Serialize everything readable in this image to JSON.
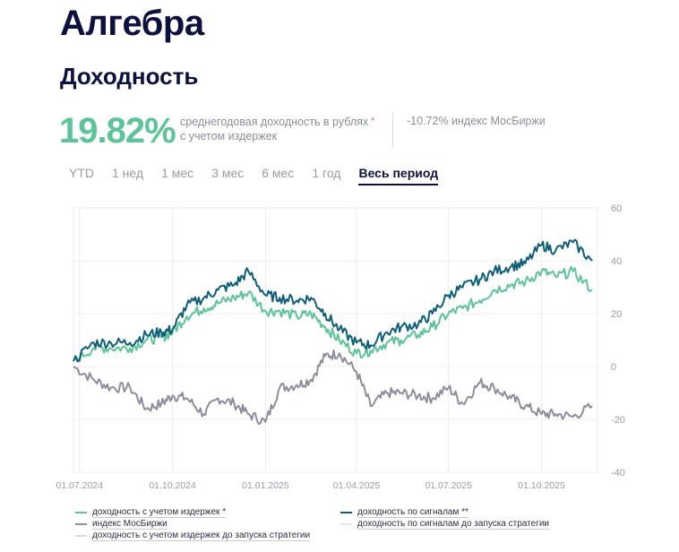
{
  "header": {
    "title": "Алгебра",
    "section": "Доходность"
  },
  "summary": {
    "annual_return": "19.82%",
    "annual_return_desc_line1": "среднегодовая доходность в рублях",
    "annual_return_desc_line2": "с учетом издержек",
    "footnote_mark": "*",
    "index_return": "-10.72% индекс МосБиржи"
  },
  "tabs": [
    {
      "label": "YTD",
      "active": false
    },
    {
      "label": "1 нед",
      "active": false
    },
    {
      "label": "1 мес",
      "active": false
    },
    {
      "label": "3 мес",
      "active": false
    },
    {
      "label": "6 мес",
      "active": false
    },
    {
      "label": "1 год",
      "active": false
    },
    {
      "label": "Весь период",
      "active": true
    }
  ],
  "legend": [
    {
      "label": "доходность с учетом издержек *",
      "color": "#5dc49a"
    },
    {
      "label": "доходность по сигналам **",
      "color": "#0f5e7a"
    },
    {
      "label": "индекс МосБиржи",
      "color": "#8e8d9e"
    },
    {
      "label": "доходность по сигналам до запуска стратегии",
      "color": "#e6e7ea"
    },
    {
      "label": "доходность с учетом издержек до запуска стратегии",
      "color": "#d9dae6"
    }
  ],
  "chart_data": {
    "type": "line",
    "title": "Доходность",
    "xlabel": "",
    "ylabel": "",
    "ylim": [
      -40,
      60
    ],
    "yticks": [
      60,
      40,
      20,
      0,
      -20,
      -40
    ],
    "y_axis_position": "right",
    "grid": true,
    "legend_position": "bottom",
    "x_tick_labels": [
      "01.07.2024",
      "01.10.2024",
      "01.01.2025",
      "01.04.2025",
      "01.07.2025",
      "01.10.2025"
    ],
    "x": [
      "2024-06-25",
      "2024-07-15",
      "2024-08-01",
      "2024-08-20",
      "2024-09-05",
      "2024-09-20",
      "2024-10-01",
      "2024-10-15",
      "2024-11-01",
      "2024-11-15",
      "2024-12-01",
      "2024-12-15",
      "2025-01-01",
      "2025-01-15",
      "2025-02-01",
      "2025-02-15",
      "2025-03-01",
      "2025-03-15",
      "2025-04-01",
      "2025-04-15",
      "2025-05-01",
      "2025-05-15",
      "2025-06-01",
      "2025-06-15",
      "2025-07-01",
      "2025-07-15",
      "2025-08-01",
      "2025-08-15",
      "2025-09-01",
      "2025-09-15",
      "2025-10-01",
      "2025-10-15",
      "2025-11-01",
      "2025-11-20"
    ],
    "series": [
      {
        "name": "доходность по сигналам **",
        "color": "#0f5e7a",
        "values": [
          2,
          9,
          9,
          9,
          12,
          13,
          14,
          23,
          26,
          29,
          31,
          36,
          27,
          26,
          25,
          26,
          20,
          14,
          9,
          8,
          13,
          15,
          16,
          20,
          27,
          30,
          33,
          36,
          38,
          39,
          46,
          44,
          47,
          40
        ]
      },
      {
        "name": "доходность с учетом издержек *",
        "color": "#5dc49a",
        "values": [
          2,
          7,
          7,
          7,
          10,
          11,
          13,
          19,
          22,
          24,
          26,
          28,
          21,
          21,
          19,
          20,
          15,
          10,
          5,
          6,
          9,
          10,
          12,
          15,
          20,
          22,
          25,
          29,
          31,
          32,
          36,
          34,
          36,
          29
        ]
      },
      {
        "name": "индекс МосБиржи",
        "color": "#8e8d9e",
        "values": [
          0,
          -5,
          -8,
          -8,
          -16,
          -14,
          -11,
          -12,
          -18,
          -12,
          -14,
          -18,
          -21,
          -8,
          -7,
          -5,
          4,
          5,
          -2,
          -15,
          -10,
          -10,
          -11,
          -12,
          -8,
          -14,
          -6,
          -8,
          -12,
          -15,
          -18,
          -18,
          -19,
          -15
        ]
      },
      {
        "name": "доходность по сигналам до запуска стратегии",
        "color": "#e6e7ea",
        "values": []
      },
      {
        "name": "доходность с учетом издержек до запуска стратегии",
        "color": "#d9dae6",
        "values": []
      }
    ]
  }
}
